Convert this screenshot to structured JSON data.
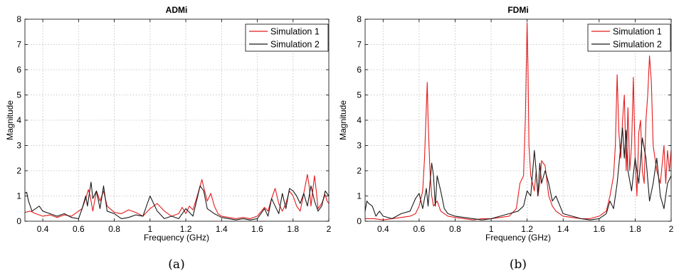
{
  "figure": {
    "captions": [
      "(a)",
      "(b)"
    ]
  },
  "chart_data": [
    {
      "type": "line",
      "title": "ADMi",
      "xlabel": "Frequency (GHz)",
      "ylabel": "Magnitude",
      "xlim": [
        0.3,
        2.0
      ],
      "ylim": [
        0,
        8
      ],
      "xticks": [
        "0.4",
        "0.6",
        "0.8",
        "1",
        "1.2",
        "1.4",
        "1.6",
        "1.8",
        "2"
      ],
      "yticks": [
        "0",
        "1",
        "2",
        "3",
        "4",
        "5",
        "6",
        "7",
        "8"
      ],
      "grid": true,
      "legend_position": "top-right",
      "series": [
        {
          "name": "Simulation 1",
          "color": "#e41a1c",
          "x": [
            0.3,
            0.33,
            0.36,
            0.4,
            0.44,
            0.48,
            0.52,
            0.56,
            0.6,
            0.62,
            0.64,
            0.655,
            0.665,
            0.68,
            0.7,
            0.72,
            0.74,
            0.76,
            0.8,
            0.84,
            0.88,
            0.92,
            0.96,
            1.0,
            1.04,
            1.08,
            1.12,
            1.16,
            1.18,
            1.2,
            1.22,
            1.24,
            1.26,
            1.28,
            1.29,
            1.3,
            1.32,
            1.34,
            1.36,
            1.38,
            1.4,
            1.44,
            1.48,
            1.52,
            1.56,
            1.6,
            1.64,
            1.66,
            1.68,
            1.7,
            1.71,
            1.72,
            1.74,
            1.76,
            1.78,
            1.8,
            1.82,
            1.84,
            1.86,
            1.88,
            1.89,
            1.9,
            1.92,
            1.93,
            1.94,
            1.96,
            1.98,
            1.99,
            2.0
          ],
          "y": [
            0.35,
            0.4,
            0.3,
            0.2,
            0.25,
            0.15,
            0.25,
            0.2,
            0.4,
            0.5,
            0.9,
            1.25,
            1.0,
            0.4,
            1.2,
            0.8,
            1.2,
            0.6,
            0.35,
            0.3,
            0.45,
            0.35,
            0.2,
            0.5,
            0.7,
            0.4,
            0.2,
            0.3,
            0.55,
            0.3,
            0.6,
            0.45,
            0.9,
            1.4,
            1.65,
            1.35,
            0.8,
            1.1,
            0.6,
            0.3,
            0.2,
            0.15,
            0.1,
            0.15,
            0.1,
            0.2,
            0.55,
            0.4,
            0.9,
            1.3,
            1.0,
            0.7,
            0.4,
            0.7,
            1.2,
            1.0,
            0.6,
            0.4,
            1.1,
            1.85,
            1.4,
            0.6,
            1.8,
            1.2,
            0.5,
            0.7,
            1.05,
            0.8,
            0.7
          ]
        },
        {
          "name": "Simulation 2",
          "color": "#1a1a1a",
          "x": [
            0.3,
            0.31,
            0.32,
            0.34,
            0.36,
            0.38,
            0.4,
            0.44,
            0.48,
            0.52,
            0.56,
            0.6,
            0.62,
            0.64,
            0.65,
            0.67,
            0.68,
            0.7,
            0.72,
            0.74,
            0.76,
            0.8,
            0.84,
            0.88,
            0.92,
            0.96,
            1.0,
            1.04,
            1.08,
            1.12,
            1.16,
            1.2,
            1.24,
            1.28,
            1.3,
            1.32,
            1.36,
            1.4,
            1.44,
            1.48,
            1.52,
            1.56,
            1.6,
            1.64,
            1.66,
            1.68,
            1.7,
            1.72,
            1.74,
            1.76,
            1.78,
            1.8,
            1.82,
            1.84,
            1.86,
            1.88,
            1.9,
            1.92,
            1.94,
            1.96,
            1.98,
            2.0
          ],
          "y": [
            1.1,
            1.15,
            0.8,
            0.4,
            0.5,
            0.6,
            0.4,
            0.3,
            0.2,
            0.3,
            0.15,
            0.1,
            0.5,
            1.0,
            0.6,
            1.55,
            0.9,
            1.2,
            0.5,
            1.4,
            0.4,
            0.3,
            0.1,
            0.15,
            0.25,
            0.2,
            1.0,
            0.4,
            0.1,
            0.2,
            0.1,
            0.5,
            0.2,
            1.4,
            1.2,
            0.5,
            0.3,
            0.15,
            0.1,
            0.05,
            0.1,
            0.05,
            0.1,
            0.5,
            0.2,
            0.9,
            0.6,
            0.3,
            1.1,
            0.5,
            1.3,
            1.2,
            1.0,
            0.7,
            1.1,
            0.6,
            1.4,
            0.8,
            0.4,
            0.6,
            1.2,
            1.0
          ]
        }
      ]
    },
    {
      "type": "line",
      "title": "FDMi",
      "xlabel": "Frequency (GHz)",
      "ylabel": "Magnitude",
      "xlim": [
        0.3,
        2.0
      ],
      "ylim": [
        0,
        8
      ],
      "xticks": [
        "0.4",
        "0.6",
        "0.8",
        "1",
        "1.2",
        "1.4",
        "1.6",
        "1.8",
        "2"
      ],
      "yticks": [
        "0",
        "1",
        "2",
        "3",
        "4",
        "5",
        "6",
        "7",
        "8"
      ],
      "grid": true,
      "legend_position": "top-right",
      "series": [
        {
          "name": "Simulation 1",
          "color": "#e41a1c",
          "x": [
            0.3,
            0.35,
            0.4,
            0.45,
            0.5,
            0.55,
            0.58,
            0.6,
            0.62,
            0.63,
            0.64,
            0.645,
            0.65,
            0.66,
            0.67,
            0.68,
            0.7,
            0.72,
            0.74,
            0.76,
            0.8,
            0.85,
            0.9,
            0.95,
            1.0,
            1.05,
            1.1,
            1.14,
            1.16,
            1.18,
            1.19,
            1.2,
            1.205,
            1.21,
            1.22,
            1.23,
            1.24,
            1.25,
            1.26,
            1.27,
            1.28,
            1.3,
            1.32,
            1.34,
            1.36,
            1.4,
            1.45,
            1.5,
            1.55,
            1.6,
            1.64,
            1.66,
            1.68,
            1.69,
            1.7,
            1.71,
            1.72,
            1.73,
            1.74,
            1.75,
            1.76,
            1.77,
            1.78,
            1.79,
            1.8,
            1.81,
            1.82,
            1.83,
            1.84,
            1.85,
            1.86,
            1.87,
            1.88,
            1.89,
            1.9,
            1.92,
            1.94,
            1.96,
            1.97,
            1.98,
            1.99,
            2.0
          ],
          "y": [
            0.1,
            0.1,
            0.05,
            0.1,
            0.15,
            0.2,
            0.3,
            0.6,
            1.2,
            2.5,
            4.5,
            5.5,
            4.0,
            2.0,
            1.0,
            0.6,
            0.8,
            0.4,
            0.3,
            0.2,
            0.15,
            0.1,
            0.05,
            0.1,
            0.1,
            0.15,
            0.2,
            0.5,
            1.5,
            1.8,
            4.0,
            7.85,
            6.0,
            3.0,
            1.8,
            1.5,
            1.2,
            2.0,
            1.0,
            1.5,
            2.4,
            2.2,
            1.0,
            0.6,
            0.4,
            0.2,
            0.15,
            0.1,
            0.1,
            0.2,
            0.4,
            1.0,
            1.8,
            3.0,
            5.8,
            3.5,
            2.5,
            4.0,
            5.0,
            2.0,
            4.5,
            2.0,
            3.0,
            5.7,
            2.5,
            1.0,
            3.5,
            4.0,
            2.0,
            1.5,
            4.0,
            5.0,
            6.55,
            5.5,
            3.0,
            2.0,
            1.5,
            3.0,
            1.5,
            2.8,
            2.0,
            2.8
          ]
        },
        {
          "name": "Simulation 2",
          "color": "#1a1a1a",
          "x": [
            0.3,
            0.31,
            0.32,
            0.34,
            0.36,
            0.38,
            0.4,
            0.45,
            0.5,
            0.55,
            0.58,
            0.6,
            0.62,
            0.64,
            0.65,
            0.66,
            0.67,
            0.68,
            0.69,
            0.7,
            0.72,
            0.74,
            0.76,
            0.8,
            0.85,
            0.9,
            0.95,
            1.0,
            1.05,
            1.1,
            1.15,
            1.18,
            1.2,
            1.22,
            1.24,
            1.25,
            1.26,
            1.27,
            1.28,
            1.3,
            1.32,
            1.34,
            1.36,
            1.4,
            1.45,
            1.5,
            1.55,
            1.6,
            1.64,
            1.66,
            1.68,
            1.7,
            1.72,
            1.73,
            1.74,
            1.75,
            1.76,
            1.78,
            1.8,
            1.82,
            1.84,
            1.86,
            1.88,
            1.9,
            1.92,
            1.94,
            1.96,
            1.98,
            2.0
          ],
          "y": [
            0.4,
            0.8,
            0.7,
            0.6,
            0.2,
            0.4,
            0.2,
            0.1,
            0.3,
            0.4,
            0.9,
            1.1,
            0.5,
            1.3,
            0.6,
            1.5,
            2.3,
            1.8,
            0.6,
            1.8,
            1.2,
            0.5,
            0.3,
            0.2,
            0.15,
            0.1,
            0.05,
            0.1,
            0.2,
            0.3,
            0.4,
            0.6,
            1.2,
            1.0,
            2.8,
            2.0,
            1.0,
            2.3,
            1.5,
            2.0,
            1.5,
            0.8,
            1.0,
            0.3,
            0.2,
            0.1,
            0.05,
            0.1,
            0.3,
            0.8,
            0.5,
            1.5,
            3.0,
            3.7,
            2.5,
            3.6,
            2.0,
            1.2,
            2.5,
            1.5,
            3.3,
            2.5,
            0.8,
            1.5,
            2.5,
            1.0,
            0.5,
            1.5,
            1.8
          ]
        }
      ]
    }
  ]
}
